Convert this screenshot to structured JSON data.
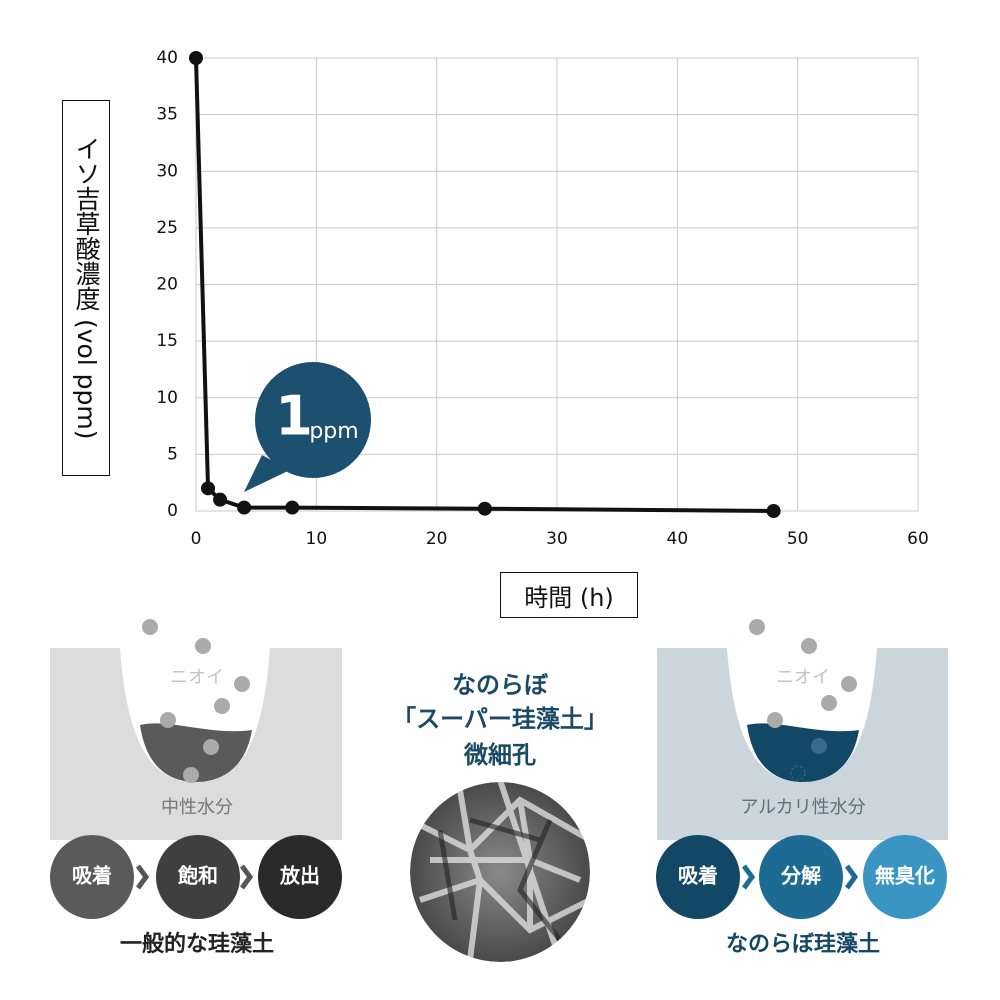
{
  "chart_data": {
    "type": "line",
    "y_label": "イソ吉草酸濃度 (vol ppm)",
    "x_label": "時間 (h)",
    "x": [
      0,
      1,
      2,
      4,
      8,
      24,
      48
    ],
    "values": [
      40,
      2,
      1,
      0.3,
      0.3,
      0.2,
      0
    ],
    "color": "#111111",
    "xlim": [
      0,
      60
    ],
    "xticks": [
      0,
      10,
      20,
      30,
      40,
      50,
      60
    ],
    "ylim": [
      0,
      40
    ],
    "yticks": [
      0,
      5,
      10,
      15,
      20,
      25,
      30,
      35,
      40
    ],
    "grid": true,
    "annotation": {
      "number": "1",
      "unit": "ppm",
      "color": "#1d4f6e"
    }
  },
  "infographic": {
    "left": {
      "smell": "ニオイ",
      "water": "中性水分",
      "steps": [
        "吸着",
        "飽和",
        "放出"
      ],
      "caption": "一般的な珪藻土"
    },
    "center": {
      "lines": [
        "なのらぼ",
        "「スーパー珪藻土」",
        "微細孔"
      ]
    },
    "right": {
      "smell": "ニオイ",
      "water": "アルカリ性水分",
      "steps": [
        "吸着",
        "分解",
        "無臭化"
      ],
      "caption": "なのらぼ珪藻土"
    }
  }
}
